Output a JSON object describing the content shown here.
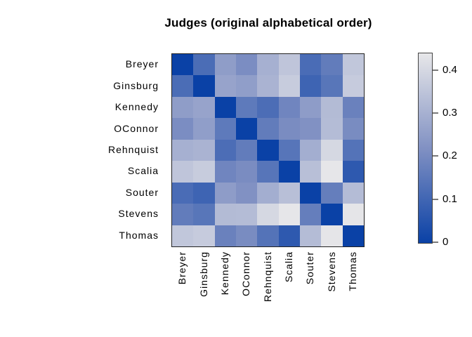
{
  "title": "Judges (original alphabetical order)",
  "chart_data": {
    "type": "heatmap",
    "title": "Judges (original alphabetical order)",
    "xlabel": "",
    "ylabel": "",
    "row_labels": [
      "Breyer",
      "Ginsburg",
      "Kennedy",
      "OConnor",
      "Rehnquist",
      "Scalia",
      "Souter",
      "Stevens",
      "Thomas"
    ],
    "col_labels": [
      "Breyer",
      "Ginsburg",
      "Kennedy",
      "OConnor",
      "Rehnquist",
      "Scalia",
      "Souter",
      "Stevens",
      "Thomas"
    ],
    "matrix": [
      [
        0,
        0.12,
        0.25,
        0.209,
        0.299,
        0.353,
        0.118,
        0.162,
        0.359
      ],
      [
        0.12,
        0,
        0.267,
        0.252,
        0.308,
        0.37,
        0.096,
        0.145,
        0.368
      ],
      [
        0.25,
        0.267,
        0,
        0.156,
        0.122,
        0.188,
        0.248,
        0.327,
        0.177
      ],
      [
        0.209,
        0.252,
        0.156,
        0,
        0.162,
        0.207,
        0.22,
        0.329,
        0.205
      ],
      [
        0.299,
        0.308,
        0.122,
        0.162,
        0,
        0.143,
        0.293,
        0.402,
        0.137
      ],
      [
        0.353,
        0.37,
        0.188,
        0.207,
        0.143,
        0,
        0.338,
        0.438,
        0.066
      ],
      [
        0.118,
        0.096,
        0.248,
        0.22,
        0.293,
        0.338,
        0,
        0.169,
        0.331
      ],
      [
        0.162,
        0.145,
        0.327,
        0.329,
        0.402,
        0.438,
        0.169,
        0,
        0.436
      ],
      [
        0.359,
        0.368,
        0.177,
        0.205,
        0.137,
        0.066,
        0.331,
        0.436,
        0
      ]
    ],
    "value_range": [
      0,
      0.44
    ],
    "colorbar": {
      "position": "right",
      "ticks": [
        0,
        0.1,
        0.2,
        0.3,
        0.4
      ],
      "tick_labels": [
        "0",
        "0.1",
        "0.2",
        "0.3",
        "0.4"
      ]
    },
    "color_scale": {
      "low": "#0a41a6",
      "mid": "#8191c3",
      "high": "#e7e7e9"
    },
    "grid": false,
    "frame_color": "#222222",
    "tick_color": "#7a7a7a",
    "background": "#ffffff"
  }
}
